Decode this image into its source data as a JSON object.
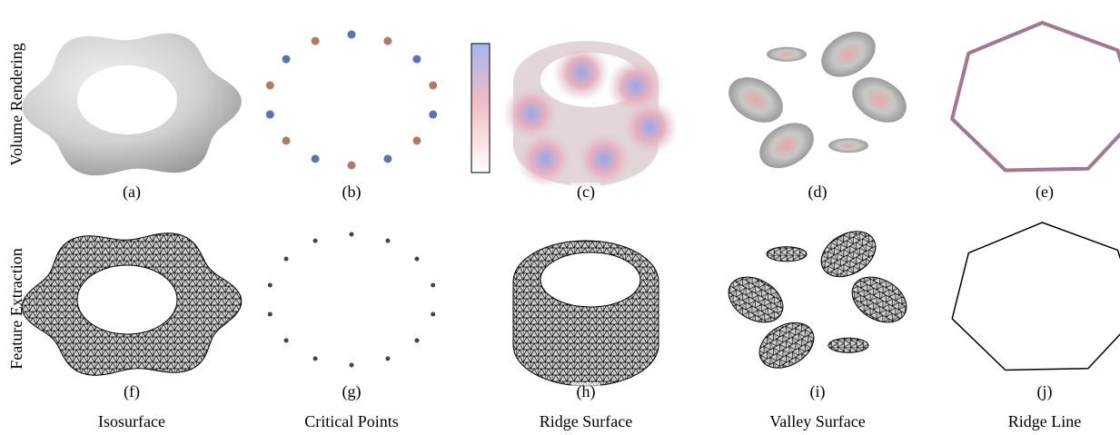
{
  "row_labels": [
    "Volume Rendering",
    "Feature Extraction"
  ],
  "panel_labels": [
    "(a)",
    "(b)",
    "(c)",
    "(d)",
    "(e)",
    "(f)",
    "(g)",
    "(h)",
    "(i)",
    "(j)"
  ],
  "column_labels": [
    "Isosurface",
    "Critical Points",
    "Ridge Surface",
    "Valley Surface",
    "Ridge Line"
  ]
}
